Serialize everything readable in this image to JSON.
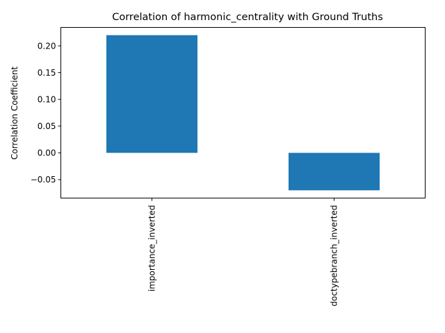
{
  "chart_data": {
    "type": "bar",
    "title": "Correlation of harmonic_centrality with Ground Truths",
    "xlabel": "",
    "ylabel": "Correlation Coefficient",
    "categories": [
      "importance_inverted",
      "doctypebranch_inverted"
    ],
    "values": [
      0.22,
      -0.07
    ],
    "ylim": [
      -0.0845,
      0.2345
    ],
    "yticks": [
      -0.05,
      0.0,
      0.05,
      0.1,
      0.15,
      0.2
    ],
    "ytick_labels": [
      "−0.05",
      "0.00",
      "0.05",
      "0.10",
      "0.15",
      "0.20"
    ],
    "grid": false,
    "legend": "none",
    "bar_color": "#1f77b4",
    "xtick_rotation": "vertical"
  }
}
